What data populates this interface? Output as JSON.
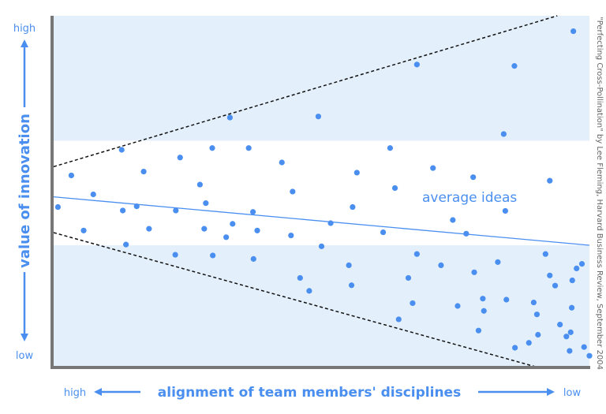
{
  "chart_data": {
    "type": "scatter",
    "title": "",
    "xlabel": "alignment of team members' disciplines",
    "ylabel": "value of innovation",
    "x_tick_labels": {
      "start": "high",
      "end": "low"
    },
    "y_tick_labels": {
      "top": "high",
      "bottom": "low"
    },
    "xlim": [
      0,
      100
    ],
    "ylim": [
      0,
      100
    ],
    "grid": false,
    "bands": [
      {
        "ymin": 0,
        "ymax": 34.6,
        "color": "#e3f0fc"
      },
      {
        "ymin": 34.6,
        "ymax": 64.4,
        "color": "#ffffff"
      },
      {
        "ymin": 64.4,
        "ymax": 100,
        "color": "#e3f0fc"
      }
    ],
    "trend_line": {
      "x": [
        0,
        100
      ],
      "y": [
        48.4,
        34.6
      ]
    },
    "upper_bound": {
      "x": [
        0,
        94
      ],
      "y": [
        57.0,
        100
      ]
    },
    "lower_bound": {
      "x": [
        0,
        89.9
      ],
      "y": [
        38.2,
        0
      ]
    },
    "annotation": "average ideas",
    "marker_color": "#4a8ff0",
    "points": [
      {
        "x": 3.3,
        "y": 54.5
      },
      {
        "x": 0.8,
        "y": 45.5
      },
      {
        "x": 7.4,
        "y": 49.1
      },
      {
        "x": 5.6,
        "y": 38.8
      },
      {
        "x": 12.7,
        "y": 61.8
      },
      {
        "x": 16.8,
        "y": 55.6
      },
      {
        "x": 12.9,
        "y": 44.5
      },
      {
        "x": 15.5,
        "y": 45.7
      },
      {
        "x": 17.8,
        "y": 39.3
      },
      {
        "x": 13.5,
        "y": 34.8
      },
      {
        "x": 23.6,
        "y": 59.6
      },
      {
        "x": 22.8,
        "y": 44.5
      },
      {
        "x": 27.3,
        "y": 51.9
      },
      {
        "x": 29.6,
        "y": 62.3
      },
      {
        "x": 28.4,
        "y": 46.6
      },
      {
        "x": 28.1,
        "y": 39.3
      },
      {
        "x": 29.7,
        "y": 31.7
      },
      {
        "x": 22.7,
        "y": 31.9
      },
      {
        "x": 32.2,
        "y": 36.9
      },
      {
        "x": 33.4,
        "y": 40.7
      },
      {
        "x": 32.9,
        "y": 71.0
      },
      {
        "x": 36.4,
        "y": 62.3
      },
      {
        "x": 37.2,
        "y": 44.1
      },
      {
        "x": 38.0,
        "y": 38.8
      },
      {
        "x": 37.3,
        "y": 30.7
      },
      {
        "x": 42.6,
        "y": 58.2
      },
      {
        "x": 44.6,
        "y": 49.9
      },
      {
        "x": 44.3,
        "y": 37.4
      },
      {
        "x": 46.0,
        "y": 25.3
      },
      {
        "x": 47.7,
        "y": 21.6
      },
      {
        "x": 50.0,
        "y": 34.3
      },
      {
        "x": 49.4,
        "y": 71.3
      },
      {
        "x": 51.7,
        "y": 40.9
      },
      {
        "x": 55.1,
        "y": 28.9
      },
      {
        "x": 55.8,
        "y": 45.5
      },
      {
        "x": 56.6,
        "y": 55.3
      },
      {
        "x": 55.6,
        "y": 23.2
      },
      {
        "x": 61.5,
        "y": 38.3
      },
      {
        "x": 62.8,
        "y": 62.3
      },
      {
        "x": 63.7,
        "y": 50.9
      },
      {
        "x": 66.2,
        "y": 25.3
      },
      {
        "x": 67.8,
        "y": 32.1
      },
      {
        "x": 67.0,
        "y": 18.1
      },
      {
        "x": 64.4,
        "y": 13.5
      },
      {
        "x": 67.8,
        "y": 86.1
      },
      {
        "x": 70.8,
        "y": 56.6
      },
      {
        "x": 72.3,
        "y": 28.9
      },
      {
        "x": 74.5,
        "y": 41.8
      },
      {
        "x": 75.4,
        "y": 17.3
      },
      {
        "x": 77.0,
        "y": 37.9
      },
      {
        "x": 78.3,
        "y": 54.0
      },
      {
        "x": 78.5,
        "y": 26.9
      },
      {
        "x": 79.3,
        "y": 10.3
      },
      {
        "x": 80.3,
        "y": 15.9
      },
      {
        "x": 82.9,
        "y": 29.8
      },
      {
        "x": 84.0,
        "y": 66.3
      },
      {
        "x": 84.3,
        "y": 44.4
      },
      {
        "x": 84.5,
        "y": 19.1
      },
      {
        "x": 86.0,
        "y": 85.7
      },
      {
        "x": 86.1,
        "y": 5.4
      },
      {
        "x": 88.7,
        "y": 6.8
      },
      {
        "x": 89.6,
        "y": 18.3
      },
      {
        "x": 90.2,
        "y": 14.9
      },
      {
        "x": 90.4,
        "y": 9.1
      },
      {
        "x": 91.8,
        "y": 32.1
      },
      {
        "x": 92.6,
        "y": 53.0
      },
      {
        "x": 92.6,
        "y": 26.0
      },
      {
        "x": 93.6,
        "y": 23.1
      },
      {
        "x": 94.5,
        "y": 12.0
      },
      {
        "x": 95.7,
        "y": 8.6
      },
      {
        "x": 96.3,
        "y": 4.5
      },
      {
        "x": 96.7,
        "y": 16.8
      },
      {
        "x": 97.0,
        "y": 95.6
      },
      {
        "x": 96.8,
        "y": 24.6
      },
      {
        "x": 97.6,
        "y": 28.0
      },
      {
        "x": 98.6,
        "y": 29.3
      },
      {
        "x": 99.0,
        "y": 5.6
      },
      {
        "x": 100.0,
        "y": 3.1
      },
      {
        "x": 96.5,
        "y": 9.8
      },
      {
        "x": 80.1,
        "y": 19.4
      }
    ]
  },
  "source_note": "\"Perfecting Cross-Pollination\" by Lee Fleming, Harvard Business Review, September 2004"
}
